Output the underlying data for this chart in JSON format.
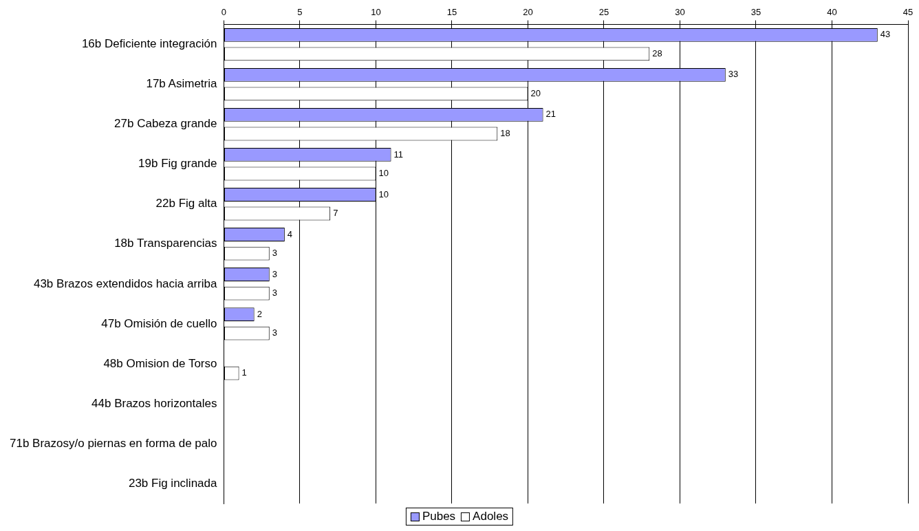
{
  "chart_data": {
    "type": "bar",
    "orientation": "horizontal",
    "categories": [
      "16b Deficiente integración",
      "17b Asimetria",
      "27b Cabeza grande",
      "19b Fig grande",
      "22b Fig alta",
      "18b Transparencias",
      "43b Brazos extendidos hacia arriba",
      "47b Omisión de cuello",
      "48b Omision de Torso",
      "44b Brazos horizontales",
      "71b Brazosy/o piernas en forma de palo",
      "23b Fig inclinada"
    ],
    "series": [
      {
        "name": "Pubes",
        "color": "#9999ff",
        "values": [
          43,
          33,
          21,
          11,
          10,
          4,
          3,
          2,
          0,
          0,
          0,
          0
        ],
        "value_labels": [
          "43",
          "33",
          "21",
          "11",
          "10",
          "4",
          "3",
          "2",
          null,
          null,
          null,
          null
        ]
      },
      {
        "name": "Adoles",
        "color": "#ffffff",
        "values": [
          28,
          20,
          18,
          10,
          7,
          3,
          3,
          3,
          1,
          0,
          0,
          0
        ],
        "value_labels": [
          "28",
          "20",
          "18",
          "10",
          "7",
          "3",
          "3",
          "3",
          "1",
          null,
          null,
          null
        ]
      }
    ],
    "xlim": [
      0,
      45
    ],
    "xticks": [
      0,
      5,
      10,
      15,
      20,
      25,
      30,
      35,
      40,
      45
    ],
    "grid": "x",
    "legend": "bottom"
  }
}
